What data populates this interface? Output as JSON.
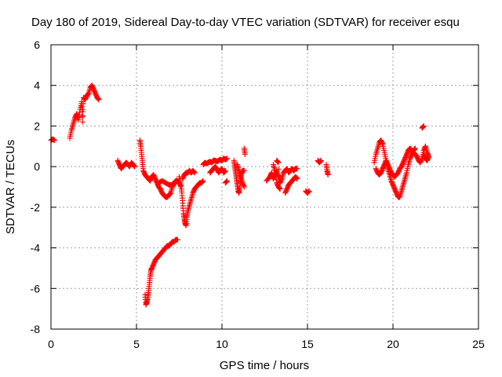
{
  "chart_data": {
    "type": "scatter",
    "title": "Day 180 of 2019, Sidereal Day-to-day VTEC variation (SDTVAR) for receiver esqu",
    "xlabel": "GPS time / hours",
    "ylabel": "SDTVAR / TECUs",
    "xlim": [
      0,
      25
    ],
    "ylim": [
      -8,
      6
    ],
    "xticks": [
      0,
      5,
      10,
      15,
      20,
      25
    ],
    "yticks": [
      -8,
      -6,
      -4,
      -2,
      0,
      2,
      4,
      6
    ],
    "grid": true,
    "marker": "+",
    "color": "#ff0000",
    "segments": [
      [
        [
          0.0,
          1.3
        ],
        [
          0.1,
          1.35
        ],
        [
          0.2,
          1.3
        ]
      ],
      [
        [
          1.1,
          1.4
        ],
        [
          1.2,
          1.8
        ],
        [
          1.3,
          2.1
        ],
        [
          1.4,
          2.4
        ],
        [
          1.5,
          2.6
        ],
        [
          1.6,
          2.3
        ],
        [
          1.7,
          2.8
        ],
        [
          1.8,
          3.2
        ],
        [
          1.85,
          2.2
        ],
        [
          1.9,
          3.4
        ],
        [
          2.0,
          3.3
        ],
        [
          2.1,
          3.5
        ],
        [
          2.2,
          3.6
        ],
        [
          2.3,
          3.9
        ],
        [
          2.4,
          4.0
        ],
        [
          2.5,
          3.8
        ],
        [
          2.6,
          3.6
        ],
        [
          2.7,
          3.4
        ],
        [
          2.8,
          3.3
        ]
      ],
      [
        [
          3.9,
          0.3
        ],
        [
          4.0,
          0.1
        ],
        [
          4.1,
          -0.1
        ],
        [
          4.2,
          0.0
        ],
        [
          4.3,
          0.1
        ],
        [
          4.4,
          0.2
        ],
        [
          4.5,
          0.1
        ],
        [
          4.6,
          0.0
        ],
        [
          4.7,
          0.2
        ],
        [
          4.8,
          0.1
        ],
        [
          4.9,
          0.0
        ]
      ],
      [
        [
          5.2,
          1.3
        ],
        [
          5.25,
          1.0
        ],
        [
          5.3,
          0.6
        ],
        [
          5.35,
          0.2
        ],
        [
          5.4,
          -0.2
        ],
        [
          5.5,
          -0.4
        ],
        [
          5.6,
          -0.5
        ],
        [
          5.7,
          -0.6
        ],
        [
          5.8,
          -0.7
        ],
        [
          5.9,
          -0.5
        ],
        [
          6.0,
          -0.4
        ],
        [
          6.1,
          -0.6
        ],
        [
          6.2,
          -0.8
        ],
        [
          6.3,
          -1.0
        ],
        [
          6.4,
          -1.1
        ],
        [
          6.5,
          -1.3
        ],
        [
          6.6,
          -1.4
        ],
        [
          6.7,
          -1.5
        ],
        [
          6.8,
          -1.5
        ],
        [
          6.9,
          -1.4
        ],
        [
          7.0,
          -1.3
        ],
        [
          7.1,
          -1.0
        ],
        [
          7.2,
          -0.8
        ],
        [
          7.3,
          -0.7
        ],
        [
          7.4,
          -0.7
        ],
        [
          7.5,
          -0.8
        ],
        [
          7.6,
          -1.0
        ]
      ],
      [
        [
          6.3,
          -0.8
        ],
        [
          6.5,
          -0.7
        ],
        [
          6.7,
          -0.8
        ],
        [
          6.9,
          -0.9
        ],
        [
          7.1,
          -0.9
        ],
        [
          7.3,
          -0.8
        ]
      ],
      [
        [
          5.5,
          -6.3
        ],
        [
          5.55,
          -6.8
        ],
        [
          5.6,
          -6.7
        ],
        [
          5.65,
          -6.5
        ],
        [
          5.7,
          -6.2
        ],
        [
          5.75,
          -5.8
        ],
        [
          5.8,
          -5.4
        ],
        [
          5.85,
          -5.1
        ],
        [
          5.9,
          -5.0
        ],
        [
          6.0,
          -4.8
        ],
        [
          6.1,
          -4.6
        ],
        [
          6.2,
          -4.5
        ],
        [
          6.3,
          -4.4
        ],
        [
          6.4,
          -4.3
        ],
        [
          6.5,
          -4.2
        ],
        [
          6.6,
          -4.1
        ],
        [
          6.7,
          -4.0
        ],
        [
          6.8,
          -3.9
        ],
        [
          6.9,
          -3.9
        ],
        [
          7.0,
          -3.8
        ],
        [
          7.1,
          -3.7
        ],
        [
          7.2,
          -3.7
        ],
        [
          7.3,
          -3.6
        ],
        [
          7.4,
          -3.6
        ]
      ],
      [
        [
          7.5,
          -0.5
        ],
        [
          7.6,
          -0.9
        ],
        [
          7.65,
          -1.3
        ],
        [
          7.7,
          -1.8
        ],
        [
          7.75,
          -2.3
        ],
        [
          7.8,
          -2.6
        ],
        [
          7.85,
          -2.8
        ],
        [
          7.9,
          -2.9
        ],
        [
          7.95,
          -2.5
        ],
        [
          8.0,
          -2.2
        ],
        [
          8.1,
          -1.9
        ],
        [
          8.2,
          -1.6
        ],
        [
          8.3,
          -1.3
        ],
        [
          8.4,
          -1.1
        ],
        [
          8.5,
          -1.0
        ],
        [
          8.6,
          -0.9
        ],
        [
          8.7,
          -0.8
        ],
        [
          8.8,
          -0.8
        ],
        [
          8.9,
          -0.7
        ]
      ],
      [
        [
          7.7,
          -0.6
        ],
        [
          7.8,
          -0.4
        ],
        [
          7.9,
          -0.3
        ],
        [
          8.0,
          -0.3
        ],
        [
          8.1,
          -0.2
        ],
        [
          8.2,
          -0.3
        ],
        [
          8.3,
          -0.2
        ],
        [
          8.4,
          -0.3
        ]
      ],
      [
        [
          8.9,
          0.1
        ],
        [
          9.0,
          0.2
        ],
        [
          9.1,
          0.15
        ],
        [
          9.2,
          0.2
        ],
        [
          9.3,
          0.25
        ],
        [
          9.4,
          0.2
        ],
        [
          9.5,
          0.3
        ],
        [
          9.6,
          0.3
        ],
        [
          9.7,
          0.25
        ],
        [
          9.8,
          0.3
        ],
        [
          9.9,
          0.35
        ],
        [
          10.0,
          0.3
        ],
        [
          10.1,
          0.4
        ],
        [
          10.2,
          0.35
        ],
        [
          10.3,
          0.4
        ]
      ],
      [
        [
          9.3,
          -0.3
        ],
        [
          9.4,
          -0.2
        ],
        [
          9.5,
          -0.1
        ],
        [
          9.6,
          0.0
        ],
        [
          9.7,
          -0.1
        ],
        [
          9.8,
          -0.3
        ],
        [
          9.9,
          -0.2
        ],
        [
          10.0,
          -0.1
        ],
        [
          10.1,
          -0.3
        ],
        [
          10.2,
          -0.2
        ]
      ],
      [
        [
          10.2,
          -0.8
        ],
        [
          10.3,
          -0.7
        ]
      ],
      [
        [
          10.7,
          0.3
        ],
        [
          10.75,
          0.0
        ],
        [
          10.8,
          -0.3
        ],
        [
          10.85,
          -0.6
        ],
        [
          10.9,
          -0.9
        ],
        [
          10.95,
          -1.2
        ],
        [
          11.0,
          -1.3
        ],
        [
          11.05,
          -1.0
        ],
        [
          11.1,
          -0.6
        ],
        [
          11.15,
          -0.3
        ],
        [
          11.2,
          -0.2
        ],
        [
          11.3,
          -0.2
        ]
      ],
      [
        [
          10.9,
          0.1
        ],
        [
          11.0,
          -0.2
        ],
        [
          11.1,
          -0.5
        ],
        [
          11.2,
          -0.8
        ],
        [
          11.3,
          -1.0
        ]
      ],
      [
        [
          11.3,
          0.9
        ],
        [
          11.35,
          0.6
        ]
      ],
      [
        [
          12.6,
          -0.7
        ],
        [
          12.8,
          -0.5
        ],
        [
          12.9,
          -0.3
        ],
        [
          13.0,
          -0.6
        ],
        [
          13.1,
          -0.4
        ],
        [
          13.2,
          -0.2
        ],
        [
          13.3,
          -0.5
        ],
        [
          13.4,
          -0.8
        ],
        [
          13.5,
          -0.6
        ],
        [
          13.6,
          -0.3
        ],
        [
          13.7,
          -0.2
        ],
        [
          13.8,
          -0.1
        ],
        [
          13.9,
          -0.3
        ],
        [
          14.0,
          -0.2
        ],
        [
          14.1,
          -0.1
        ],
        [
          14.2,
          -0.2
        ],
        [
          14.3,
          -0.1
        ],
        [
          14.4,
          -0.1
        ]
      ],
      [
        [
          13.0,
          0.1
        ],
        [
          13.1,
          -0.2
        ],
        [
          13.2,
          -0.8
        ],
        [
          13.3,
          -1.0
        ],
        [
          13.4,
          -1.1
        ],
        [
          13.3,
          0.2
        ],
        [
          13.2,
          0.3
        ]
      ],
      [
        [
          13.7,
          -1.3
        ],
        [
          13.8,
          -1.1
        ],
        [
          13.9,
          -0.9
        ],
        [
          14.0,
          -0.8
        ],
        [
          14.1,
          -0.7
        ],
        [
          14.2,
          -0.6
        ],
        [
          14.3,
          -0.5
        ],
        [
          14.4,
          -0.6
        ]
      ],
      [
        [
          14.9,
          -1.2
        ],
        [
          15.0,
          -1.3
        ],
        [
          15.1,
          -1.2
        ]
      ],
      [
        [
          15.6,
          0.3
        ],
        [
          15.7,
          0.2
        ],
        [
          15.8,
          0.3
        ]
      ],
      [
        [
          16.1,
          0.1
        ],
        [
          16.15,
          -0.2
        ],
        [
          16.2,
          -0.4
        ]
      ],
      [
        [
          18.9,
          0.2
        ],
        [
          19.0,
          0.6
        ],
        [
          19.1,
          0.9
        ],
        [
          19.2,
          1.2
        ],
        [
          19.3,
          1.3
        ],
        [
          19.4,
          1.1
        ],
        [
          19.5,
          0.7
        ],
        [
          19.6,
          0.3
        ],
        [
          19.7,
          -0.1
        ],
        [
          19.8,
          -0.4
        ],
        [
          19.9,
          -0.7
        ],
        [
          20.0,
          -0.9
        ],
        [
          20.1,
          -1.1
        ],
        [
          20.2,
          -1.3
        ],
        [
          20.3,
          -1.5
        ],
        [
          20.4,
          -1.5
        ],
        [
          20.5,
          -1.2
        ],
        [
          20.6,
          -0.9
        ],
        [
          20.7,
          -0.6
        ],
        [
          20.8,
          -0.3
        ],
        [
          20.9,
          0.1
        ],
        [
          21.0,
          0.4
        ],
        [
          21.1,
          0.6
        ],
        [
          21.2,
          0.8
        ],
        [
          21.3,
          0.9
        ]
      ],
      [
        [
          19.0,
          -0.1
        ],
        [
          19.1,
          -0.3
        ],
        [
          19.2,
          -0.4
        ],
        [
          19.3,
          -0.3
        ],
        [
          19.4,
          -0.1
        ],
        [
          19.5,
          0.1
        ],
        [
          19.6,
          0.3
        ],
        [
          19.7,
          0.1
        ],
        [
          19.8,
          -0.1
        ],
        [
          19.9,
          -0.3
        ],
        [
          20.0,
          -0.4
        ],
        [
          20.1,
          -0.5
        ],
        [
          20.2,
          -0.4
        ],
        [
          20.3,
          -0.3
        ],
        [
          20.4,
          -0.1
        ],
        [
          20.5,
          0.0
        ],
        [
          20.6,
          0.2
        ],
        [
          20.7,
          0.4
        ],
        [
          20.8,
          0.6
        ],
        [
          20.9,
          0.8
        ],
        [
          21.0,
          0.9
        ],
        [
          21.1,
          0.8
        ],
        [
          21.2,
          0.7
        ],
        [
          21.3,
          0.6
        ],
        [
          21.4,
          0.5
        ],
        [
          21.5,
          0.3
        ],
        [
          21.6,
          0.2
        ],
        [
          21.7,
          0.4
        ],
        [
          21.8,
          0.8
        ],
        [
          21.9,
          1.0
        ],
        [
          22.0,
          0.7
        ],
        [
          22.1,
          0.5
        ],
        [
          22.0,
          0.3
        ],
        [
          21.9,
          0.4
        ],
        [
          21.8,
          0.6
        ]
      ],
      [
        [
          21.7,
          1.9
        ],
        [
          21.8,
          2.0
        ]
      ]
    ]
  }
}
